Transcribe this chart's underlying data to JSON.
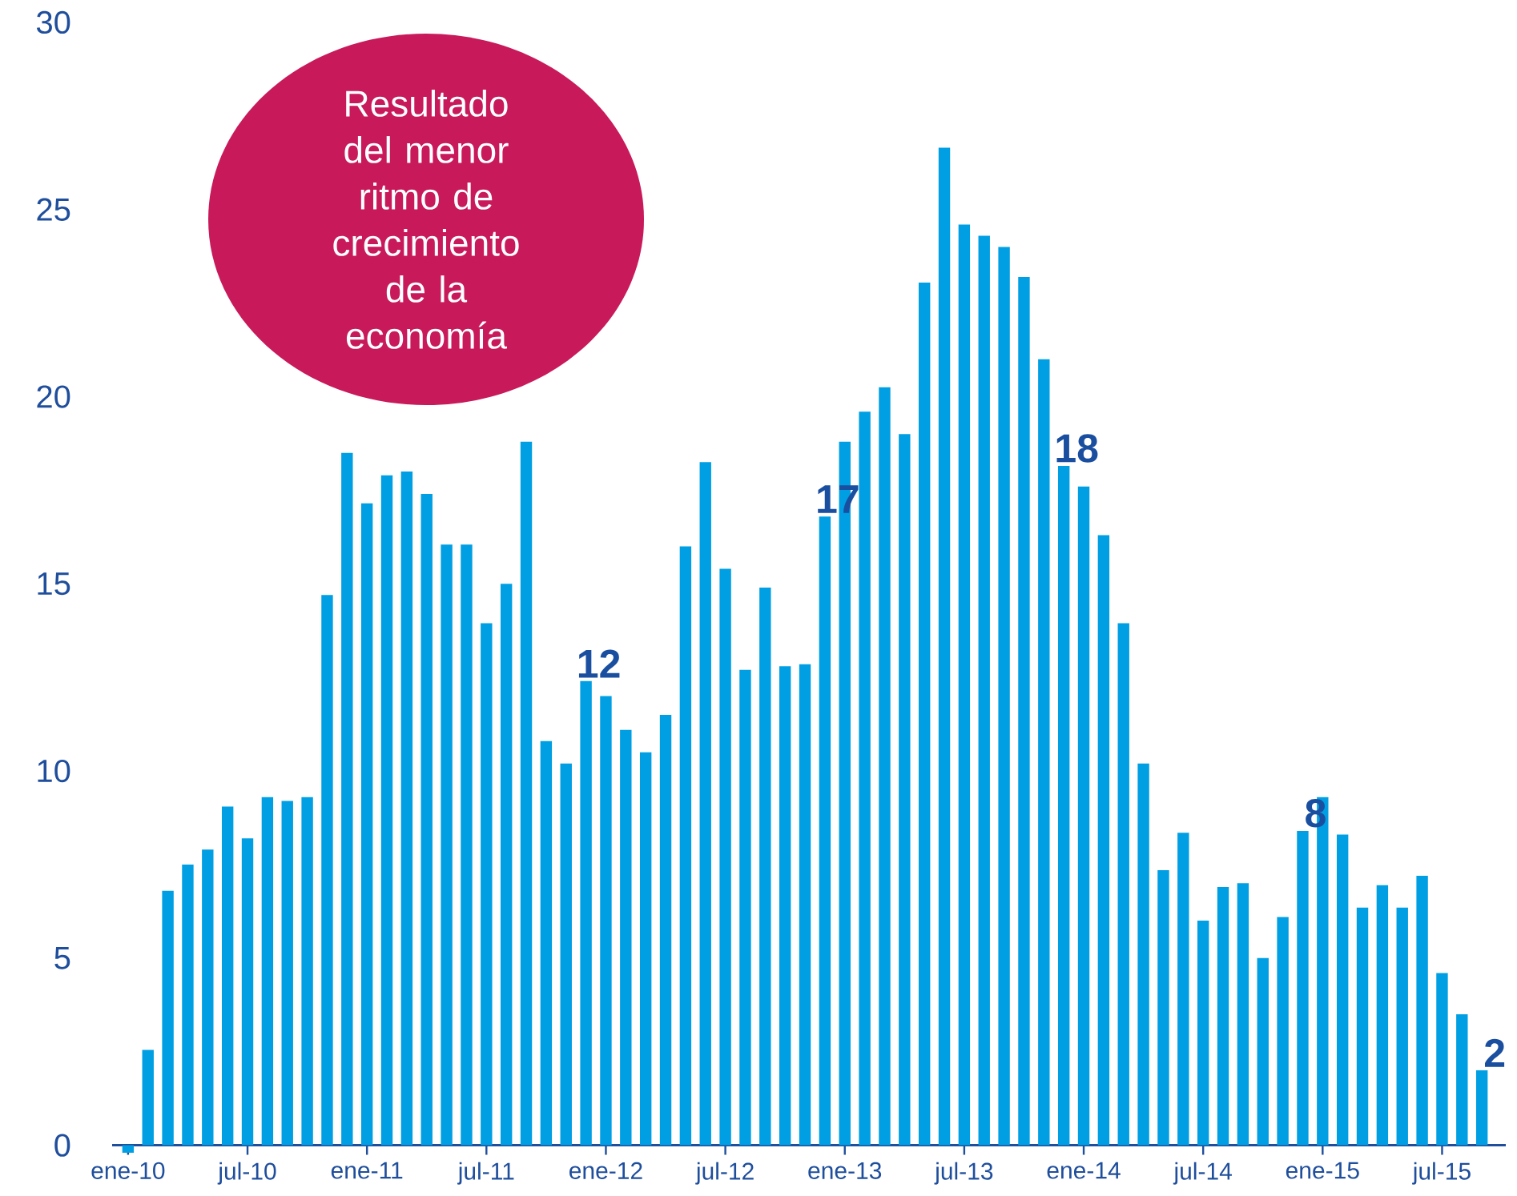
{
  "chart_data": {
    "type": "bar",
    "color": "#009fe3",
    "categories": [
      "ene-10",
      null,
      null,
      null,
      null,
      null,
      "jul-10",
      null,
      null,
      null,
      null,
      null,
      "ene-11",
      null,
      null,
      null,
      null,
      null,
      "jul-11",
      null,
      null,
      null,
      null,
      null,
      "ene-12",
      null,
      null,
      null,
      null,
      null,
      "jul-12",
      null,
      null,
      null,
      null,
      null,
      "ene-13",
      null,
      null,
      null,
      null,
      null,
      "jul-13",
      null,
      null,
      null,
      null,
      null,
      "ene-14",
      null,
      null,
      null,
      null,
      null,
      "jul-14",
      null,
      null,
      null,
      null,
      null,
      "ene-15",
      null,
      null,
      null,
      null,
      null,
      "jul-15",
      null,
      null
    ],
    "values": [
      -0.2,
      2.55,
      6.8,
      7.5,
      7.9,
      9.05,
      8.2,
      9.3,
      9.2,
      9.3,
      14.7,
      18.5,
      17.15,
      17.9,
      18.0,
      17.4,
      16.05,
      16.05,
      13.95,
      15.0,
      18.8,
      10.8,
      10.2,
      12.4,
      12.0,
      11.1,
      10.5,
      11.5,
      16.0,
      18.25,
      15.4,
      12.7,
      14.9,
      12.8,
      12.85,
      16.8,
      18.8,
      19.6,
      20.25,
      19.0,
      23.05,
      26.65,
      24.6,
      24.3,
      24.0,
      23.2,
      21.0,
      18.15,
      17.6,
      16.3,
      13.95,
      10.2,
      7.35,
      8.35,
      6.0,
      6.9,
      7.0,
      5.0,
      6.1,
      8.4,
      9.3,
      8.3,
      6.35,
      6.95,
      6.35,
      7.2,
      4.6,
      3.5,
      2.0
    ],
    "value_labels": [
      null,
      null,
      null,
      null,
      null,
      null,
      null,
      null,
      null,
      null,
      null,
      null,
      null,
      null,
      null,
      null,
      null,
      null,
      null,
      null,
      null,
      null,
      null,
      "12",
      null,
      null,
      null,
      null,
      null,
      null,
      null,
      null,
      null,
      null,
      null,
      "17",
      null,
      null,
      null,
      null,
      null,
      null,
      null,
      null,
      null,
      null,
      null,
      "18",
      null,
      null,
      null,
      null,
      null,
      null,
      null,
      null,
      null,
      null,
      null,
      "8",
      null,
      null,
      null,
      null,
      null,
      null,
      null,
      null,
      "2"
    ],
    "ylim": [
      -0.5,
      30
    ],
    "yticks": [
      0,
      5,
      10,
      15,
      20,
      25,
      30
    ],
    "annotations": [
      "Resultado del menor ritmo de crecimiento de la economía"
    ]
  }
}
